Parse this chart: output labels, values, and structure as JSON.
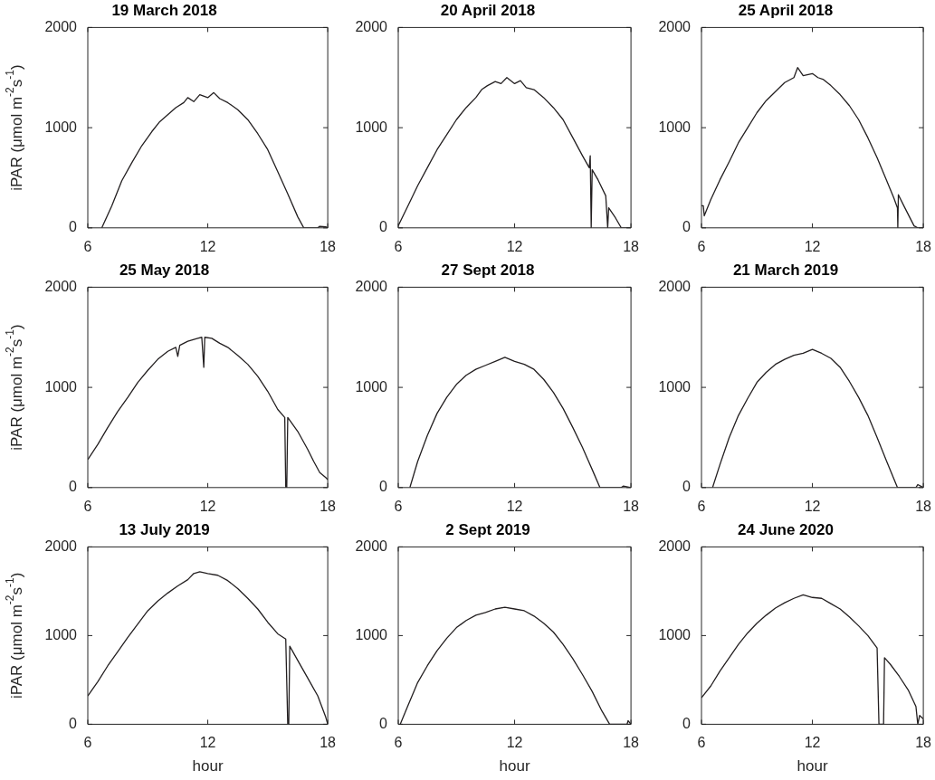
{
  "chart_data": [
    {
      "type": "line",
      "title": "19 March 2018",
      "ylabel": "iPAR (μmol m$^{-2}$s$^{-1}$)",
      "color": "#231f20",
      "xlim": [
        6,
        18
      ],
      "xticks": [
        6,
        12,
        18
      ],
      "ylim": [
        0,
        2000
      ],
      "yticks": [
        0,
        1000,
        2000
      ],
      "x": [
        6.7,
        7.2,
        7.7,
        8.2,
        8.7,
        9.2,
        9.6,
        10,
        10.4,
        10.8,
        11,
        11.3,
        11.6,
        12,
        12.3,
        12.6,
        13,
        13.5,
        14,
        14.5,
        15,
        15.5,
        16,
        16.5,
        16.8,
        17.5,
        17.6,
        17.9,
        18
      ],
      "values": [
        0,
        220,
        470,
        650,
        820,
        960,
        1060,
        1130,
        1200,
        1250,
        1300,
        1260,
        1330,
        1300,
        1350,
        1290,
        1250,
        1180,
        1080,
        940,
        780,
        560,
        340,
        110,
        0,
        0,
        15,
        10,
        0
      ]
    },
    {
      "type": "line",
      "title": "20 April 2018",
      "color": "#231f20",
      "xlim": [
        6,
        18
      ],
      "xticks": [
        6,
        12,
        18
      ],
      "ylim": [
        0,
        2000
      ],
      "yticks": [
        0,
        1000,
        2000
      ],
      "x": [
        6,
        6.5,
        7,
        7.5,
        8,
        8.5,
        9,
        9.5,
        10,
        10.3,
        10.6,
        11,
        11.3,
        11.6,
        12,
        12.3,
        12.6,
        13,
        13.5,
        14,
        14.5,
        15,
        15.5,
        15.85,
        15.9,
        15.95,
        16,
        16.3,
        16.7,
        16.8,
        16.85,
        17.2,
        17.5,
        18
      ],
      "values": [
        20,
        220,
        420,
        600,
        780,
        930,
        1080,
        1200,
        1300,
        1380,
        1420,
        1460,
        1440,
        1500,
        1440,
        1470,
        1400,
        1380,
        1300,
        1200,
        1080,
        900,
        720,
        600,
        720,
        0,
        580,
        480,
        320,
        0,
        200,
        100,
        0,
        0
      ]
    },
    {
      "type": "line",
      "title": "25 April 2018",
      "color": "#231f20",
      "xlim": [
        6,
        18
      ],
      "xticks": [
        6,
        12,
        18
      ],
      "ylim": [
        0,
        2000
      ],
      "yticks": [
        0,
        1000,
        2000
      ],
      "x": [
        6,
        6.1,
        6.15,
        6.5,
        7,
        7.5,
        8,
        8.5,
        9,
        9.5,
        10,
        10.5,
        11,
        11.2,
        11.5,
        12,
        12.3,
        12.6,
        13,
        13.5,
        14,
        14.5,
        15,
        15.5,
        16,
        16.4,
        16.6,
        16.62,
        16.65,
        17,
        17.5,
        17.7,
        18
      ],
      "values": [
        220,
        220,
        120,
        280,
        480,
        660,
        850,
        1000,
        1150,
        1270,
        1360,
        1450,
        1500,
        1600,
        1520,
        1540,
        1500,
        1480,
        1420,
        1330,
        1220,
        1080,
        900,
        700,
        480,
        300,
        200,
        0,
        330,
        200,
        20,
        0,
        0
      ]
    },
    {
      "type": "line",
      "title": "25 May 2018",
      "ylabel": "iPAR (μmol m$^{-2}$s$^{-1}$)",
      "color": "#231f20",
      "xlim": [
        6,
        18
      ],
      "xticks": [
        6,
        12,
        18
      ],
      "ylim": [
        0,
        2000
      ],
      "yticks": [
        0,
        1000,
        2000
      ],
      "x": [
        6,
        6.5,
        7,
        7.5,
        8,
        8.5,
        9,
        9.5,
        10,
        10.4,
        10.5,
        10.6,
        11,
        11.5,
        11.7,
        11.8,
        11.85,
        12.2,
        12.6,
        13,
        13.5,
        14,
        14.5,
        15,
        15.5,
        15.85,
        15.9,
        15.95,
        16,
        16.5,
        17,
        17.3,
        17.6,
        17.9,
        18
      ],
      "values": [
        280,
        430,
        600,
        760,
        900,
        1050,
        1170,
        1280,
        1360,
        1400,
        1310,
        1420,
        1460,
        1490,
        1500,
        1200,
        1500,
        1490,
        1440,
        1400,
        1320,
        1230,
        1110,
        960,
        780,
        700,
        0,
        0,
        700,
        560,
        380,
        260,
        150,
        100,
        80
      ]
    },
    {
      "type": "line",
      "title": "27 Sept 2018",
      "color": "#231f20",
      "xlim": [
        6,
        18
      ],
      "xticks": [
        6,
        12,
        18
      ],
      "ylim": [
        0,
        2000
      ],
      "yticks": [
        0,
        1000,
        2000
      ],
      "x": [
        6.6,
        7,
        7.5,
        8,
        8.5,
        9,
        9.5,
        10,
        10.5,
        11,
        11.5,
        12,
        12.5,
        13,
        13.5,
        14,
        14.5,
        15,
        15.5,
        16,
        16.4,
        17.5,
        17.6,
        18
      ],
      "values": [
        0,
        260,
        520,
        740,
        900,
        1030,
        1120,
        1180,
        1220,
        1260,
        1300,
        1260,
        1230,
        1180,
        1080,
        950,
        790,
        600,
        400,
        180,
        0,
        0,
        15,
        0
      ]
    },
    {
      "type": "line",
      "title": "21 March 2019",
      "color": "#231f20",
      "xlim": [
        6,
        18
      ],
      "xticks": [
        6,
        12,
        18
      ],
      "ylim": [
        0,
        2000
      ],
      "yticks": [
        0,
        1000,
        2000
      ],
      "x": [
        6.6,
        7,
        7.5,
        8,
        8.5,
        9,
        9.5,
        10,
        10.5,
        11,
        11.5,
        12,
        12.5,
        13,
        13.5,
        14,
        14.5,
        15,
        15.5,
        16,
        16.6,
        17.6,
        17.7,
        18
      ],
      "values": [
        0,
        230,
        500,
        720,
        890,
        1050,
        1150,
        1230,
        1280,
        1320,
        1340,
        1380,
        1340,
        1290,
        1200,
        1060,
        900,
        720,
        500,
        270,
        0,
        0,
        30,
        0
      ]
    },
    {
      "type": "line",
      "title": "13 July 2019",
      "ylabel": "iPAR (μmol m$^{-2}$s$^{-1}$)",
      "xlabel": "hour",
      "color": "#231f20",
      "xlim": [
        6,
        18
      ],
      "xticks": [
        6,
        12,
        18
      ],
      "ylim": [
        0,
        2000
      ],
      "yticks": [
        0,
        1000,
        2000
      ],
      "x": [
        6,
        6.5,
        7,
        7.5,
        8,
        8.5,
        9,
        9.5,
        10,
        10.5,
        11,
        11.3,
        11.6,
        12,
        12.5,
        13,
        13.5,
        14,
        14.5,
        15,
        15.5,
        15.9,
        16,
        16.05,
        16.1,
        16.5,
        17,
        17.5,
        17.9,
        18
      ],
      "values": [
        320,
        480,
        660,
        820,
        980,
        1130,
        1280,
        1390,
        1480,
        1560,
        1630,
        1700,
        1720,
        1700,
        1680,
        1620,
        1530,
        1420,
        1300,
        1150,
        1020,
        960,
        0,
        0,
        880,
        720,
        520,
        320,
        80,
        0
      ]
    },
    {
      "type": "line",
      "title": "2 Sept 2019",
      "xlabel": "hour",
      "color": "#231f20",
      "xlim": [
        6,
        18
      ],
      "xticks": [
        6,
        12,
        18
      ],
      "ylim": [
        0,
        2000
      ],
      "yticks": [
        0,
        1000,
        2000
      ],
      "x": [
        6.1,
        6.5,
        7,
        7.5,
        8,
        8.5,
        9,
        9.5,
        10,
        10.5,
        11,
        11.5,
        12,
        12.5,
        13,
        13.5,
        14,
        14.5,
        15,
        15.5,
        16,
        16.5,
        16.9,
        17.8,
        17.85,
        18
      ],
      "values": [
        0,
        210,
        470,
        660,
        830,
        970,
        1090,
        1170,
        1230,
        1260,
        1300,
        1320,
        1300,
        1280,
        1220,
        1140,
        1040,
        900,
        740,
        560,
        370,
        150,
        0,
        0,
        40,
        0
      ]
    },
    {
      "type": "line",
      "title": "24 June 2020",
      "xlabel": "hour",
      "color": "#231f20",
      "xlim": [
        6,
        18
      ],
      "xticks": [
        6,
        12,
        18
      ],
      "ylim": [
        0,
        2000
      ],
      "yticks": [
        0,
        1000,
        2000
      ],
      "x": [
        6,
        6.5,
        7,
        7.5,
        8,
        8.5,
        9,
        9.5,
        10,
        10.5,
        11,
        11.5,
        12,
        12.5,
        13,
        13.5,
        14,
        14.5,
        15,
        15.5,
        15.6,
        15.85,
        15.9,
        16.2,
        16.7,
        17.2,
        17.6,
        17.7,
        17.8,
        18
      ],
      "values": [
        300,
        430,
        600,
        750,
        900,
        1030,
        1140,
        1230,
        1310,
        1370,
        1420,
        1460,
        1430,
        1420,
        1360,
        1300,
        1210,
        1110,
        1000,
        860,
        0,
        0,
        750,
        680,
        540,
        380,
        200,
        0,
        100,
        60
      ]
    }
  ]
}
